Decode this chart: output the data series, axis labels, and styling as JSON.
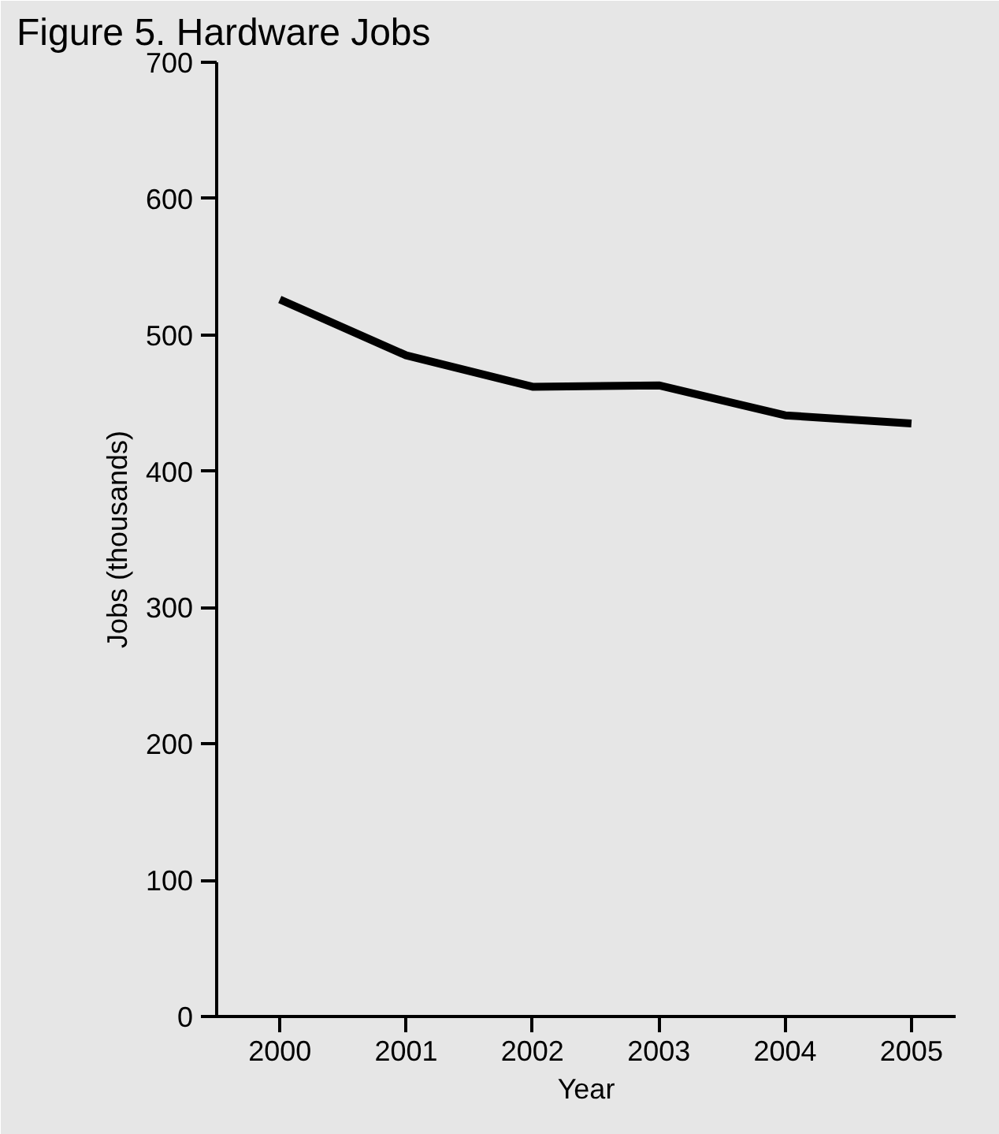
{
  "chart_data": {
    "type": "line",
    "title": "Figure 5. Hardware Jobs",
    "xlabel": "Year",
    "ylabel": "Jobs (thousands)",
    "x": [
      2000,
      2001,
      2002,
      2003,
      2004,
      2005
    ],
    "series": [
      {
        "color": "#000000",
        "values": [
          526,
          485,
          462,
          463,
          441,
          435
        ]
      }
    ],
    "xlim": [
      1999.5,
      2005.35
    ],
    "xticks": [
      2000,
      2001,
      2002,
      2003,
      2004,
      2005
    ],
    "ylim": [
      0,
      700
    ],
    "yticks": [
      0,
      100,
      200,
      300,
      400,
      500,
      600,
      700
    ],
    "marker": "none",
    "line_style": "solid"
  }
}
